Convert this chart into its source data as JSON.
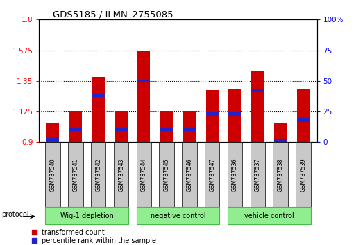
{
  "title": "GDS5185 / ILMN_2755085",
  "samples": [
    "GSM737540",
    "GSM737541",
    "GSM737542",
    "GSM737543",
    "GSM737544",
    "GSM737545",
    "GSM737546",
    "GSM737547",
    "GSM737536",
    "GSM737537",
    "GSM737538",
    "GSM737539"
  ],
  "red_values": [
    1.04,
    1.13,
    1.38,
    1.13,
    1.575,
    1.13,
    1.13,
    1.285,
    1.29,
    1.42,
    1.04,
    1.29
  ],
  "blue_values": [
    0.02,
    0.1,
    0.38,
    0.1,
    0.5,
    0.1,
    0.1,
    0.23,
    0.23,
    0.42,
    0.01,
    0.18
  ],
  "ymin": 0.9,
  "ymax": 1.8,
  "yticks": [
    0.9,
    1.125,
    1.35,
    1.575,
    1.8
  ],
  "ytick_labels": [
    "0.9",
    "1.125",
    "1.35",
    "1.575",
    "1.8"
  ],
  "y2min": 0,
  "y2max": 100,
  "y2ticks": [
    0,
    25,
    50,
    75,
    100
  ],
  "y2tick_labels": [
    "0",
    "25",
    "50",
    "75",
    "100%"
  ],
  "groups": [
    {
      "label": "Wig-1 depletion",
      "start": 0,
      "end": 3
    },
    {
      "label": "negative control",
      "start": 4,
      "end": 7
    },
    {
      "label": "vehicle control",
      "start": 8,
      "end": 11
    }
  ],
  "bar_width": 0.55,
  "red_color": "#cc0000",
  "blue_color": "#2222cc",
  "tick_bg": "#c8c8c8",
  "green_fill": "#90ee90",
  "green_edge": "#44bb44",
  "protocol_label": "protocol"
}
